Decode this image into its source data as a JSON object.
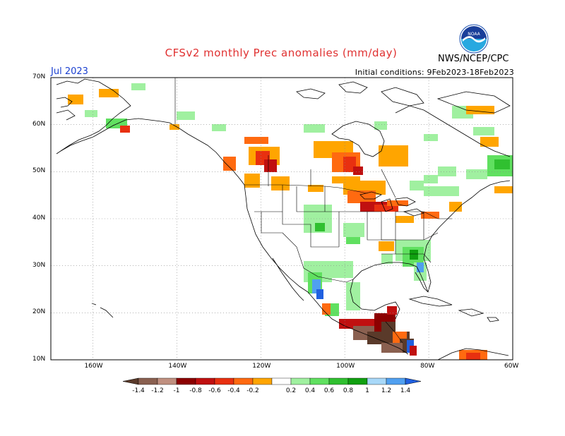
{
  "header": {
    "title": "CFSv2 monthly Prec anomalies (mm/day)",
    "month": "Jul 2023",
    "initial_conditions": "Initial conditions: 9Feb2023-18Feb2023",
    "agency": "NWS/NCEP/CPC",
    "logo_icon": "noaa-logo-icon",
    "logo_text": "NOAA"
  },
  "axes": {
    "lat_labels": [
      "70N",
      "60N",
      "50N",
      "40N",
      "30N",
      "20N",
      "10N"
    ],
    "lon_labels": [
      "160W",
      "140W",
      "120W",
      "100W",
      "80W",
      "60W"
    ]
  },
  "colorbar": {
    "labels": [
      "-1.4",
      "-1.2",
      "-1",
      "-0.8",
      "-0.6",
      "-0.4",
      "-0.2",
      "0.2",
      "0.4",
      "0.6",
      "0.8",
      "1",
      "1.2",
      "1.4"
    ],
    "colors": [
      "#5a3a2a",
      "#8a6050",
      "#c09080",
      "#8c0000",
      "#c01010",
      "#e83010",
      "#ff6a10",
      "#ffa500",
      "#ffffff",
      "#a0f0a0",
      "#60e060",
      "#30c030",
      "#10a010",
      "#a8d8f8",
      "#50a0f0",
      "#2060e0"
    ]
  },
  "chart_data": {
    "type": "heatmap",
    "title": "CFSv2 monthly Prec anomalies (mm/day)",
    "lat_range": [
      10,
      70
    ],
    "lon_range": [
      -170,
      -60
    ],
    "regions": [
      {
        "area": "Pacific Northwest / British Columbia",
        "anomaly": -0.6
      },
      {
        "area": "Manitoba / Ontario",
        "anomaly": -0.5
      },
      {
        "area": "Upper Midwest / Great Lakes",
        "anomaly": -0.6
      },
      {
        "area": "Quebec",
        "anomaly": -0.3
      },
      {
        "area": "Southeast US / Florida",
        "anomaly": 0.6
      },
      {
        "area": "Mexican Sierra Madre Occidental",
        "anomaly": 1.2
      },
      {
        "area": "Southern Mexico / Central America",
        "anomaly": -1.4
      },
      {
        "area": "Alaska (scattered)",
        "anomaly": 0.4
      },
      {
        "area": "Atlantic Canada",
        "anomaly": 0.6
      }
    ]
  }
}
